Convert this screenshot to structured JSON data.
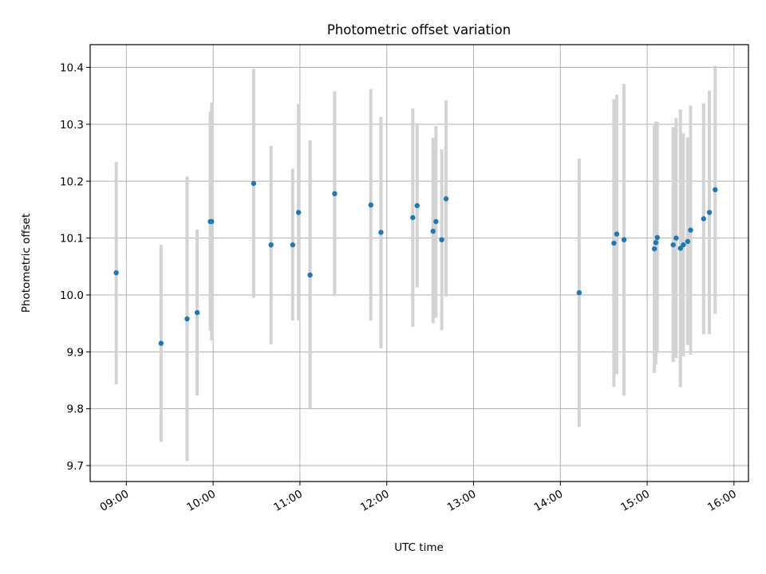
{
  "chart_data": {
    "type": "scatter",
    "title": "Photometric offset variation",
    "xlabel": "UTC time",
    "ylabel": "Photometric offset",
    "ylim": [
      9.672,
      10.44
    ],
    "xlim": [
      "08:35",
      "16:10"
    ],
    "grid": true,
    "legend": "none",
    "x_ticks": [
      "09:00",
      "10:00",
      "11:00",
      "12:00",
      "13:00",
      "14:00",
      "15:00",
      "16:00"
    ],
    "y_ticks": [
      9.7,
      9.8,
      9.9,
      10.0,
      10.1,
      10.2,
      10.3,
      10.4
    ],
    "y_tick_labels": [
      "9.7",
      "9.8",
      "9.9",
      "10.0",
      "10.1",
      "10.2",
      "10.3",
      "10.4"
    ],
    "colors": {
      "point": "#1f77b4",
      "errorbar": "#d3d3d3",
      "grid": "#b0b0b0"
    },
    "points": [
      {
        "x": "08:53",
        "y": 10.039,
        "lo": 9.843,
        "hi": 10.234
      },
      {
        "x": "09:24",
        "y": 9.915,
        "lo": 9.742,
        "hi": 10.088
      },
      {
        "x": "09:42",
        "y": 9.958,
        "lo": 9.708,
        "hi": 10.208
      },
      {
        "x": "09:49",
        "y": 9.969,
        "lo": 9.823,
        "hi": 10.115
      },
      {
        "x": "09:58",
        "y": 10.129,
        "lo": 9.937,
        "hi": 10.322
      },
      {
        "x": "09:59",
        "y": 10.129,
        "lo": 9.92,
        "hi": 10.338
      },
      {
        "x": "10:28",
        "y": 10.196,
        "lo": 9.995,
        "hi": 10.397
      },
      {
        "x": "10:40",
        "y": 10.088,
        "lo": 9.913,
        "hi": 10.262
      },
      {
        "x": "10:55",
        "y": 10.088,
        "lo": 9.955,
        "hi": 10.222
      },
      {
        "x": "10:59",
        "y": 10.145,
        "lo": 9.955,
        "hi": 10.336
      },
      {
        "x": "11:07",
        "y": 10.035,
        "lo": 9.8,
        "hi": 10.272
      },
      {
        "x": "11:24",
        "y": 10.178,
        "lo": 9.998,
        "hi": 10.358
      },
      {
        "x": "11:49",
        "y": 10.158,
        "lo": 9.955,
        "hi": 10.362
      },
      {
        "x": "11:56",
        "y": 10.11,
        "lo": 9.906,
        "hi": 10.313
      },
      {
        "x": "12:18",
        "y": 10.136,
        "lo": 9.944,
        "hi": 10.328
      },
      {
        "x": "12:21",
        "y": 10.157,
        "lo": 10.013,
        "hi": 10.302
      },
      {
        "x": "12:32",
        "y": 10.112,
        "lo": 9.95,
        "hi": 10.276
      },
      {
        "x": "12:34",
        "y": 10.129,
        "lo": 9.96,
        "hi": 10.297
      },
      {
        "x": "12:38",
        "y": 10.097,
        "lo": 9.938,
        "hi": 10.256
      },
      {
        "x": "12:41",
        "y": 10.169,
        "lo": 9.997,
        "hi": 10.342
      },
      {
        "x": "14:13",
        "y": 10.004,
        "lo": 9.768,
        "hi": 10.24
      },
      {
        "x": "14:37",
        "y": 10.091,
        "lo": 9.838,
        "hi": 10.344
      },
      {
        "x": "14:39",
        "y": 10.107,
        "lo": 9.861,
        "hi": 10.352
      },
      {
        "x": "14:44",
        "y": 10.097,
        "lo": 9.823,
        "hi": 10.371
      },
      {
        "x": "15:05",
        "y": 10.081,
        "lo": 9.863,
        "hi": 10.298
      },
      {
        "x": "15:06",
        "y": 10.092,
        "lo": 9.878,
        "hi": 10.305
      },
      {
        "x": "15:07",
        "y": 10.101,
        "lo": 9.898,
        "hi": 10.304
      },
      {
        "x": "15:18",
        "y": 10.088,
        "lo": 9.882,
        "hi": 10.295
      },
      {
        "x": "15:20",
        "y": 10.1,
        "lo": 9.889,
        "hi": 10.311
      },
      {
        "x": "15:23",
        "y": 10.082,
        "lo": 9.838,
        "hi": 10.326
      },
      {
        "x": "15:25",
        "y": 10.088,
        "lo": 9.892,
        "hi": 10.284
      },
      {
        "x": "15:28",
        "y": 10.094,
        "lo": 9.912,
        "hi": 10.277
      },
      {
        "x": "15:30",
        "y": 10.114,
        "lo": 9.895,
        "hi": 10.333
      },
      {
        "x": "15:39",
        "y": 10.134,
        "lo": 9.931,
        "hi": 10.337
      },
      {
        "x": "15:43",
        "y": 10.145,
        "lo": 9.931,
        "hi": 10.359
      },
      {
        "x": "15:47",
        "y": 10.185,
        "lo": 9.967,
        "hi": 10.403
      }
    ]
  }
}
